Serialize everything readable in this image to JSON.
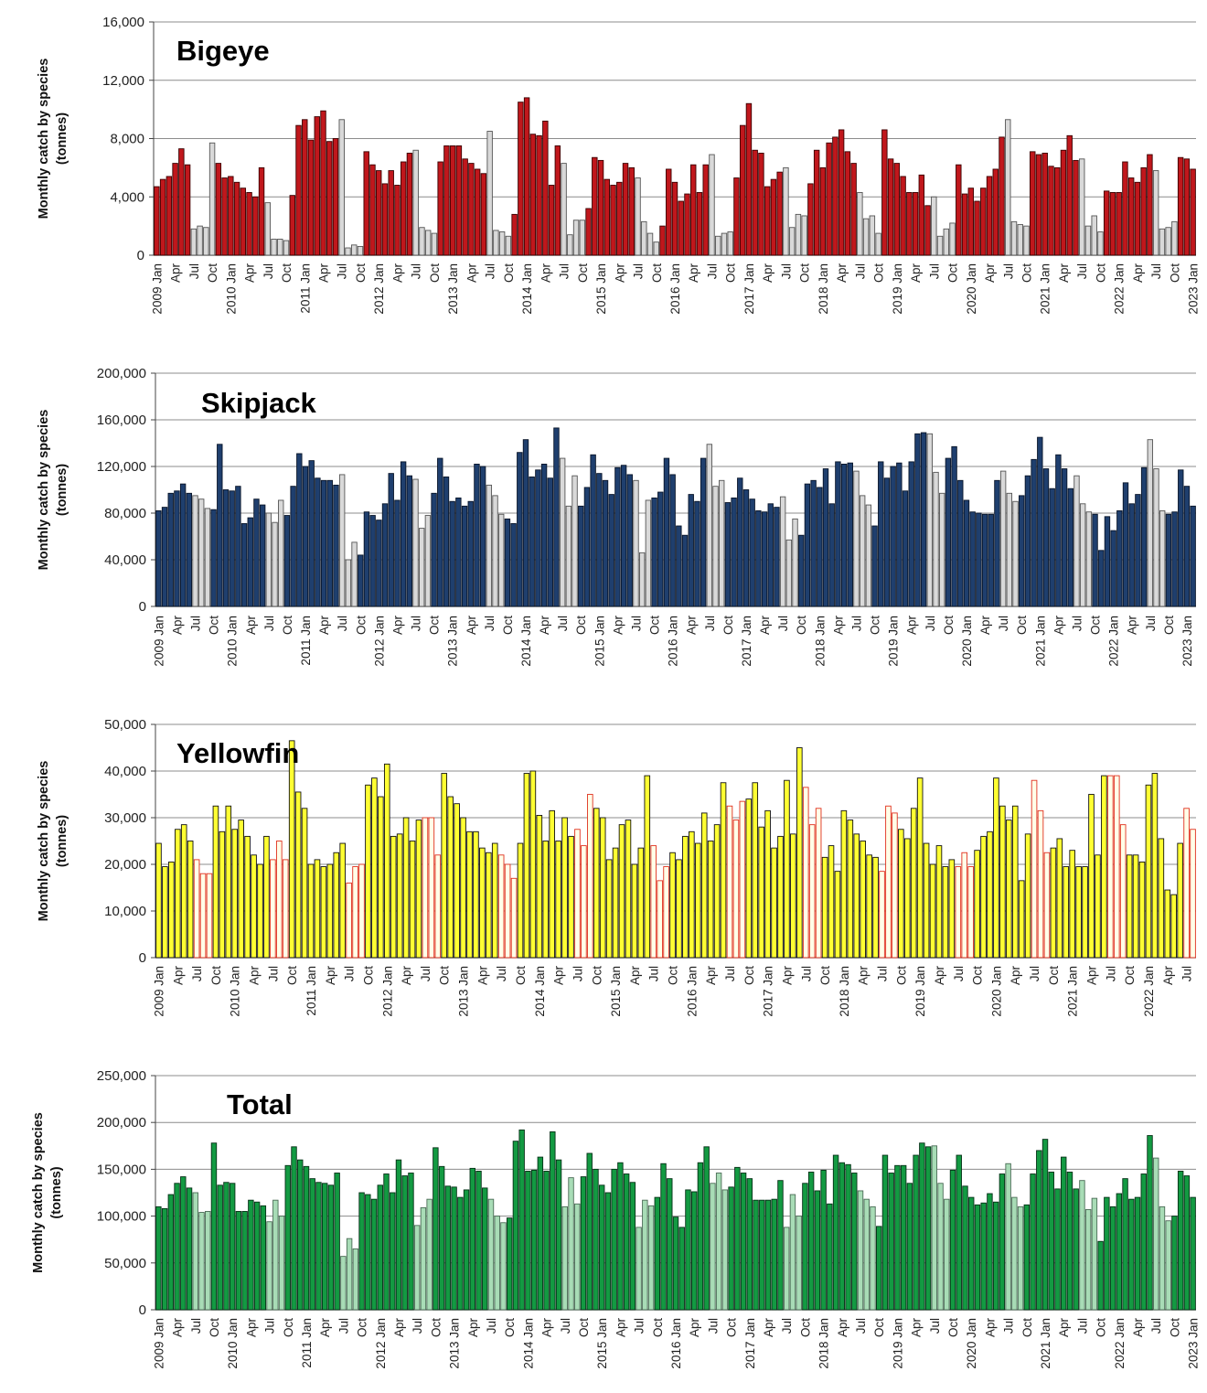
{
  "months_labels": [
    "Jan",
    "Apr",
    "Jul",
    "Oct"
  ],
  "start_year": 2009,
  "end_year": 2022,
  "chart_data": [
    {
      "type": "bar",
      "title": "Bigeye",
      "ylabel_line1": "Monthly catch by species",
      "ylabel_line2": "(tonnes)",
      "ylim": [
        0,
        16000
      ],
      "yticks": [
        "0",
        "4,000",
        "8,000",
        "12,000",
        "16,000"
      ],
      "ytick_values": [
        0,
        4000,
        8000,
        12000,
        16000
      ],
      "grid": true,
      "colors": {
        "main_fill": "#c0171c",
        "main_stroke": "#3a0000",
        "light_fill": "#d9d9d9",
        "light_stroke": "#555555"
      },
      "light_months": [
        6,
        7,
        8,
        9,
        18,
        19,
        20,
        21,
        30,
        31,
        32,
        33,
        42,
        43,
        44,
        45,
        54,
        55,
        56,
        57,
        66,
        67,
        68,
        69,
        78,
        79,
        80,
        81,
        90,
        91,
        92,
        93,
        102,
        103,
        104,
        105,
        114,
        115,
        116,
        117,
        126,
        127,
        128,
        129,
        138,
        139,
        140,
        141,
        150,
        151,
        152,
        153,
        162,
        163,
        164,
        165
      ],
      "values": [
        4700,
        5200,
        5400,
        6300,
        7300,
        6200,
        1800,
        2000,
        1900,
        7700,
        6300,
        5300,
        5400,
        5000,
        4600,
        4300,
        4000,
        6000,
        3600,
        1100,
        1100,
        1000,
        4100,
        8900,
        9300,
        7900,
        9500,
        9900,
        7800,
        8000,
        9300,
        500,
        700,
        600,
        7100,
        6200,
        5800,
        4900,
        5800,
        4800,
        6400,
        7000,
        7200,
        1900,
        1700,
        1500,
        6400,
        7500,
        7500,
        7500,
        6600,
        6300,
        5900,
        5600,
        8500,
        1700,
        1600,
        1300,
        2800,
        10500,
        10800,
        8300,
        8200,
        9200,
        4800,
        7500,
        6300,
        1400,
        2400,
        2400,
        3200,
        6700,
        6500,
        5200,
        4800,
        5000,
        6300,
        6000,
        5300,
        2300,
        1500,
        900,
        2000,
        5900,
        5000,
        3700,
        4200,
        6200,
        4300,
        6200,
        6900,
        1300,
        1500,
        1600,
        5300,
        8900,
        10400,
        7200,
        7000,
        4700,
        5200,
        5700,
        6000,
        1900,
        2800,
        2700,
        4900,
        7200,
        6000,
        7700,
        8100,
        8600,
        7100,
        6300,
        4300,
        2500,
        2700,
        1500,
        8600,
        6600,
        6300,
        5400,
        4300,
        4300,
        5500,
        3400,
        4000,
        1300,
        1800,
        2200,
        6200,
        4200,
        4600,
        3700,
        4600,
        5400,
        5900,
        8100,
        9300,
        2300,
        2100,
        2000,
        7100,
        6900,
        7000,
        6100,
        6000,
        7200,
        8200,
        6500,
        6600,
        2000,
        2700,
        1600,
        4400,
        4300,
        4300,
        6400,
        5300,
        5000,
        6000,
        6900,
        5800,
        1800,
        1900,
        2300,
        6700,
        6600,
        5900
      ]
    },
    {
      "type": "bar",
      "title": "Skipjack",
      "ylabel_line1": "Monthly catch by species",
      "ylabel_line2": "(tonnes)",
      "ylim": [
        0,
        200000
      ],
      "yticks": [
        "0",
        "40,000",
        "80,000",
        "120,000",
        "160,000",
        "200,000"
      ],
      "ytick_values": [
        0,
        40000,
        80000,
        120000,
        160000,
        200000
      ],
      "grid": true,
      "colors": {
        "main_fill": "#1f3f6e",
        "main_stroke": "#081428",
        "light_fill": "#d9d9d9",
        "light_stroke": "#555555"
      },
      "light_months": [
        6,
        7,
        8,
        18,
        19,
        20,
        30,
        31,
        32,
        42,
        43,
        44,
        54,
        55,
        56,
        66,
        67,
        68,
        78,
        79,
        80,
        90,
        91,
        92,
        102,
        103,
        104,
        114,
        115,
        116,
        126,
        127,
        128,
        138,
        139,
        140,
        150,
        151,
        152,
        162,
        163,
        164
      ],
      "values": [
        82000,
        85000,
        97000,
        99000,
        105000,
        97000,
        95000,
        92000,
        84000,
        83000,
        139000,
        100000,
        99000,
        103000,
        71000,
        76000,
        92000,
        87000,
        80000,
        72000,
        91000,
        78000,
        103000,
        131000,
        120000,
        125000,
        110000,
        108000,
        108000,
        104000,
        113000,
        40000,
        55000,
        44000,
        81000,
        78000,
        74000,
        88000,
        114000,
        91000,
        124000,
        112000,
        109000,
        67000,
        78000,
        97000,
        127000,
        111000,
        90000,
        93000,
        86000,
        90000,
        122000,
        120000,
        104000,
        95000,
        79000,
        75000,
        71000,
        132000,
        143000,
        111000,
        117000,
        122000,
        110000,
        153000,
        127000,
        86000,
        112000,
        86000,
        102000,
        130000,
        114000,
        108000,
        96000,
        119000,
        121000,
        113000,
        108000,
        46000,
        91000,
        93000,
        98000,
        127000,
        113000,
        69000,
        61000,
        96000,
        90000,
        127000,
        139000,
        103000,
        108000,
        89000,
        93000,
        110000,
        100000,
        92000,
        82000,
        81000,
        88000,
        85000,
        94000,
        57000,
        75000,
        61000,
        105000,
        108000,
        102000,
        118000,
        88000,
        124000,
        122000,
        123000,
        116000,
        95000,
        87000,
        69000,
        124000,
        110000,
        120000,
        123000,
        99000,
        124000,
        148000,
        149000,
        148000,
        115000,
        97000,
        127000,
        137000,
        108000,
        91000,
        81000,
        80000,
        79000,
        79000,
        108000,
        116000,
        97000,
        90000,
        95000,
        112000,
        126000,
        145000,
        118000,
        101000,
        130000,
        118000,
        101000,
        112000,
        88000,
        81000,
        79000,
        48000,
        77000,
        65000,
        82000,
        106000,
        88000,
        96000,
        119000,
        143000,
        118000,
        82000,
        79000,
        81000,
        117000,
        103000,
        86000
      ]
    },
    {
      "type": "bar",
      "title": "Yellowfin",
      "ylabel_line1": "Monthly catch by species",
      "ylabel_line2": "(tonnes)",
      "ylim": [
        0,
        50000
      ],
      "yticks": [
        "0",
        "10,000",
        "20,000",
        "30,000",
        "40,000",
        "50,000"
      ],
      "ytick_values": [
        0,
        10000,
        20000,
        30000,
        40000,
        50000
      ],
      "grid": true,
      "colors": {
        "main_fill": "#ffff33",
        "main_stroke": "#111111",
        "light_fill": "#ffffe8",
        "light_stroke": "#e0301e"
      },
      "light_months": [
        6,
        7,
        8,
        18,
        19,
        20,
        30,
        31,
        32,
        42,
        43,
        44,
        54,
        55,
        56,
        66,
        67,
        68,
        78,
        79,
        80,
        90,
        91,
        92,
        102,
        103,
        104,
        114,
        115,
        116,
        126,
        127,
        128,
        138,
        139,
        140,
        150,
        151,
        152,
        162,
        163,
        164
      ],
      "values": [
        24500,
        19500,
        20500,
        27500,
        28500,
        25000,
        21000,
        18000,
        18000,
        32500,
        27000,
        32500,
        27500,
        29500,
        26000,
        22000,
        20000,
        26000,
        21000,
        25000,
        21000,
        46500,
        35500,
        32000,
        20000,
        21000,
        19500,
        20000,
        22500,
        24500,
        16000,
        19500,
        20000,
        37000,
        38500,
        34500,
        41500,
        26000,
        26500,
        30000,
        25000,
        29500,
        30000,
        30000,
        22000,
        39500,
        34500,
        33000,
        30000,
        27000,
        27000,
        23500,
        22500,
        24500,
        22000,
        20000,
        17000,
        24500,
        39500,
        40000,
        30500,
        25000,
        31500,
        25000,
        30000,
        26000,
        27500,
        24000,
        35000,
        32000,
        30000,
        21000,
        23500,
        28500,
        29500,
        20000,
        23500,
        39000,
        24000,
        16500,
        19500,
        22500,
        21000,
        26000,
        27000,
        24500,
        31000,
        25000,
        28500,
        37500,
        32500,
        29500,
        33500,
        34000,
        37500,
        28000,
        31500,
        23500,
        26000,
        38000,
        26500,
        45000,
        36500,
        28500,
        32000,
        21500,
        24000,
        18500,
        31500,
        29500,
        26500,
        25000,
        22000,
        21500,
        18500,
        32500,
        31000,
        27500,
        25500,
        32000,
        38500,
        24500,
        20000,
        24000,
        19500,
        21000,
        19500,
        22500,
        19500,
        23000,
        26000,
        27000,
        38500,
        32500,
        29500,
        32500,
        16500,
        26500,
        38000,
        31500,
        22500,
        23500,
        25500,
        19500,
        23000,
        19500,
        19500,
        35000,
        22000,
        39000,
        39000,
        39000,
        28500,
        22000,
        22000,
        20500,
        37000,
        39500,
        25500,
        14500,
        13500,
        24500,
        32000,
        27500
      ]
    },
    {
      "type": "bar",
      "title": "Total",
      "ylabel_line1": "Monthly catch by species",
      "ylabel_line2": "(tonnes)",
      "ylim": [
        0,
        250000
      ],
      "yticks": [
        "0",
        "50,000",
        "100,000",
        "150,000",
        "200,000",
        "250,000"
      ],
      "ytick_values": [
        0,
        50000,
        100000,
        150000,
        200000,
        250000
      ],
      "grid": true,
      "colors": {
        "main_fill": "#139a42",
        "main_stroke": "#053016",
        "light_fill": "#a8dcb6",
        "light_stroke": "#4a6b55"
      },
      "light_months": [
        6,
        7,
        8,
        18,
        19,
        20,
        30,
        31,
        32,
        42,
        43,
        44,
        54,
        55,
        56,
        66,
        67,
        68,
        78,
        79,
        80,
        90,
        91,
        92,
        102,
        103,
        104,
        114,
        115,
        116,
        126,
        127,
        128,
        138,
        139,
        140,
        150,
        151,
        152,
        162,
        163,
        164
      ],
      "values": [
        110000,
        108000,
        123000,
        135000,
        142000,
        130000,
        125000,
        104000,
        105000,
        178000,
        133000,
        136000,
        135000,
        105000,
        105000,
        117000,
        115000,
        111000,
        94000,
        117000,
        100000,
        154000,
        174000,
        160000,
        153000,
        140000,
        136000,
        135000,
        133000,
        146000,
        57000,
        76000,
        65000,
        125000,
        123000,
        118000,
        133000,
        145000,
        125000,
        160000,
        143000,
        146000,
        90000,
        109000,
        118000,
        173000,
        153000,
        132000,
        131000,
        120000,
        128000,
        151000,
        148000,
        130000,
        118000,
        100000,
        93000,
        98000,
        180000,
        192000,
        148000,
        149000,
        163000,
        148000,
        190000,
        160000,
        110000,
        141000,
        113000,
        142000,
        167000,
        150000,
        133000,
        125000,
        150000,
        157000,
        145000,
        136000,
        88000,
        117000,
        111000,
        120000,
        156000,
        140000,
        99000,
        88000,
        128000,
        126000,
        157000,
        174000,
        135000,
        146000,
        128000,
        131000,
        152000,
        146000,
        140000,
        117000,
        117000,
        117000,
        118000,
        138000,
        88000,
        123000,
        100000,
        135000,
        147000,
        127000,
        149000,
        113000,
        165000,
        157000,
        155000,
        146000,
        127000,
        118000,
        110000,
        89000,
        165000,
        146000,
        154000,
        154000,
        135000,
        165000,
        178000,
        174000,
        175000,
        135000,
        118000,
        149000,
        165000,
        132000,
        120000,
        112000,
        114000,
        124000,
        115000,
        145000,
        156000,
        120000,
        110000,
        112000,
        145000,
        170000,
        182000,
        147000,
        129000,
        163000,
        147000,
        129000,
        138000,
        107000,
        119000,
        73000,
        120000,
        110000,
        124000,
        140000,
        118000,
        120000,
        145000,
        186000,
        162000,
        110000,
        95000,
        100000,
        148000,
        143000,
        120000
      ]
    }
  ]
}
